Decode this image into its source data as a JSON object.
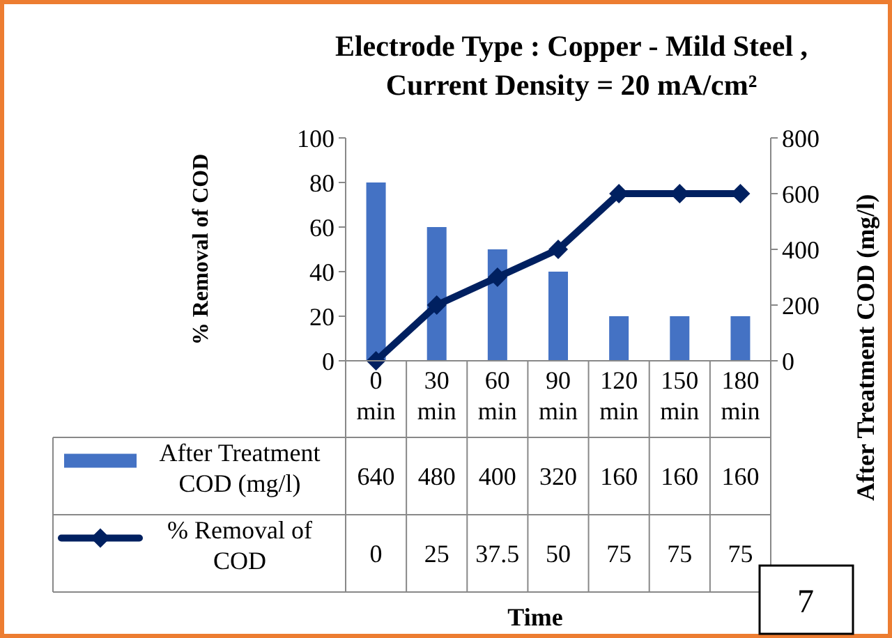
{
  "chart_data": {
    "type": "bar",
    "title": "Electrode Type : Copper - Mild Steel ,\nCurrent Density = 20 mA/cm²",
    "ylabel": "% Removal of COD",
    "y2label": "After Treatment COD (mg/l)",
    "categories": [
      "0 min",
      "30 min",
      "60 min",
      "90 min",
      "120 min",
      "150 min",
      "180 min"
    ],
    "series": [
      {
        "name": "After Treatment COD (mg/l)",
        "axis": "y2",
        "color": "#4472c4",
        "values": [
          640,
          480,
          400,
          320,
          160,
          160,
          160
        ]
      },
      {
        "name": "% Removal of COD",
        "type": "line",
        "axis": "y",
        "color": "#002060",
        "marker": "diamond",
        "values": [
          0,
          25,
          37.5,
          50,
          75,
          75,
          75
        ]
      }
    ],
    "ylim": [
      0,
      100
    ],
    "yticks": [
      0,
      20,
      40,
      60,
      80,
      100
    ],
    "y2lim": [
      0,
      800
    ],
    "y2ticks": [
      0,
      200,
      400,
      600,
      800
    ],
    "data_labels": true,
    "legend": "bottom",
    "grid": false,
    "annotations": [
      "Time",
      "7"
    ]
  }
}
